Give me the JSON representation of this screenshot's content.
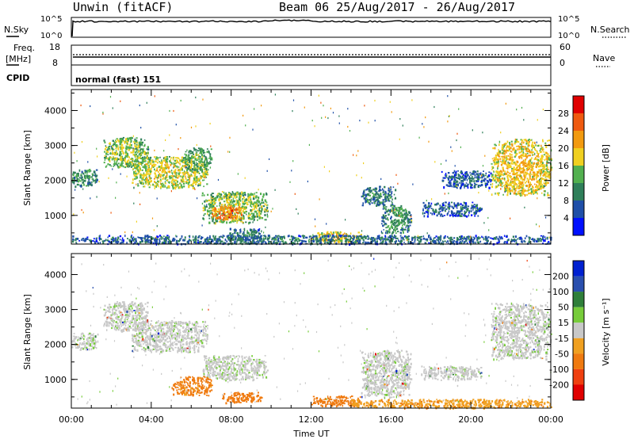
{
  "header": {
    "station": "Unwin (fitACF)",
    "beam_range": "Beam 06 25/Aug/2017 - 26/Aug/2017"
  },
  "top_panels": {
    "nsky_label": "N.Sky",
    "nsky_ticks": [
      "10^5",
      "10^0"
    ],
    "nsearch_label": "N.Search",
    "nsearch_ticks": [
      "10^5",
      "10^0"
    ],
    "freq_label_1": "Freq.",
    "freq_label_2": "[MHz]",
    "freq_ticks": [
      "18",
      "8"
    ],
    "nave_label": "Nave",
    "nave_ticks": [
      "60",
      "0"
    ],
    "cpid_label": "CPID",
    "cpid_value": "normal (fast) 151"
  },
  "colors": {
    "power": [
      "#0010ff",
      "#1f4fa8",
      "#2f7f5a",
      "#52b04f",
      "#f0d020",
      "#f29a10",
      "#ef5a10",
      "#e00000"
    ],
    "velocity": [
      "#0020d0",
      "#2a4fae",
      "#2f7f3a",
      "#77cc3a",
      "#c8c8c8",
      "#f0a020",
      "#ef7a10",
      "#ef4010",
      "#e00000"
    ]
  },
  "chart_data": [
    {
      "type": "heatmap",
      "quantity": "Power",
      "xlabel": "",
      "ylabel": "Slant Range [km]",
      "xlim": [
        "00:00",
        "24:00"
      ],
      "ylim": [
        180,
        4600
      ],
      "y_ticks": [
        "1000",
        "2000",
        "3000",
        "4000"
      ],
      "colorbar": {
        "label": "Power [dB]",
        "ticks": [
          "4",
          "8",
          "12",
          "16",
          "20",
          "24",
          "28"
        ],
        "range": [
          0,
          32
        ]
      },
      "regions": [
        {
          "t0": 0.0,
          "t1": 1.3,
          "r0": 1850,
          "r1": 2350,
          "level": 12
        },
        {
          "t0": 1.6,
          "t1": 3.8,
          "r0": 2400,
          "r1": 3250,
          "level": 16
        },
        {
          "t0": 3.0,
          "t1": 6.8,
          "r0": 1800,
          "r1": 2700,
          "level": 18
        },
        {
          "t0": 5.5,
          "t1": 7.0,
          "r0": 2300,
          "r1": 2950,
          "level": 14
        },
        {
          "t0": 6.5,
          "t1": 9.8,
          "r0": 800,
          "r1": 1700,
          "level": 16
        },
        {
          "t0": 7.0,
          "t1": 8.5,
          "r0": 900,
          "r1": 1300,
          "level": 26
        },
        {
          "t0": 7.8,
          "t1": 9.5,
          "r0": 300,
          "r1": 650,
          "level": 10
        },
        {
          "t0": 12.0,
          "t1": 14.5,
          "r0": 250,
          "r1": 550,
          "level": 20
        },
        {
          "t0": 14.5,
          "t1": 16.2,
          "r0": 1300,
          "r1": 1850,
          "level": 10
        },
        {
          "t0": 15.5,
          "t1": 17.0,
          "r0": 500,
          "r1": 1300,
          "level": 12
        },
        {
          "t0": 17.5,
          "t1": 20.5,
          "r0": 1000,
          "r1": 1400,
          "level": 8
        },
        {
          "t0": 18.5,
          "t1": 21.0,
          "r0": 1800,
          "r1": 2300,
          "level": 8
        },
        {
          "t0": 21.0,
          "t1": 24.0,
          "r0": 1600,
          "r1": 3200,
          "level": 20
        },
        {
          "t0": 0.0,
          "t1": 24.0,
          "r0": 200,
          "r1": 450,
          "level": 9
        }
      ]
    },
    {
      "type": "heatmap",
      "quantity": "Velocity",
      "xlabel": "Time UT",
      "ylabel": "Slant Range [km]",
      "xlim": [
        "00:00",
        "24:00"
      ],
      "ylim": [
        180,
        4600
      ],
      "x_ticks": [
        "00:00",
        "04:00",
        "08:00",
        "12:00",
        "16:00",
        "20:00",
        "00:00"
      ],
      "y_ticks": [
        "1000",
        "2000",
        "3000",
        "4000"
      ],
      "colorbar": {
        "label": "Velocity [m s⁻¹]",
        "ticks": [
          "200",
          "100",
          "50",
          "15",
          "-15",
          "-50",
          "-100",
          "-200"
        ]
      },
      "regions": [
        {
          "t0": 0.0,
          "t1": 1.3,
          "r0": 1850,
          "r1": 2350,
          "level": 0
        },
        {
          "t0": 1.6,
          "t1": 3.8,
          "r0": 2400,
          "r1": 3250,
          "level": 0
        },
        {
          "t0": 3.0,
          "t1": 6.8,
          "r0": 1800,
          "r1": 2700,
          "level": 0
        },
        {
          "t0": 6.5,
          "t1": 9.8,
          "r0": 1000,
          "r1": 1700,
          "level": 5
        },
        {
          "t0": 5.0,
          "t1": 7.0,
          "r0": 550,
          "r1": 1100,
          "level": -60
        },
        {
          "t0": 7.5,
          "t1": 9.5,
          "r0": 350,
          "r1": 650,
          "level": -80
        },
        {
          "t0": 12.0,
          "t1": 14.5,
          "r0": 250,
          "r1": 550,
          "level": -70
        },
        {
          "t0": 14.5,
          "t1": 17.0,
          "r0": 500,
          "r1": 1850,
          "level": 0
        },
        {
          "t0": 17.5,
          "t1": 20.5,
          "r0": 1000,
          "r1": 1400,
          "level": 0
        },
        {
          "t0": 21.0,
          "t1": 24.0,
          "r0": 1600,
          "r1": 3200,
          "level": 0
        },
        {
          "t0": 14.0,
          "t1": 24.0,
          "r0": 200,
          "r1": 450,
          "level": -40
        }
      ]
    }
  ],
  "xaxis_title": "Time UT"
}
